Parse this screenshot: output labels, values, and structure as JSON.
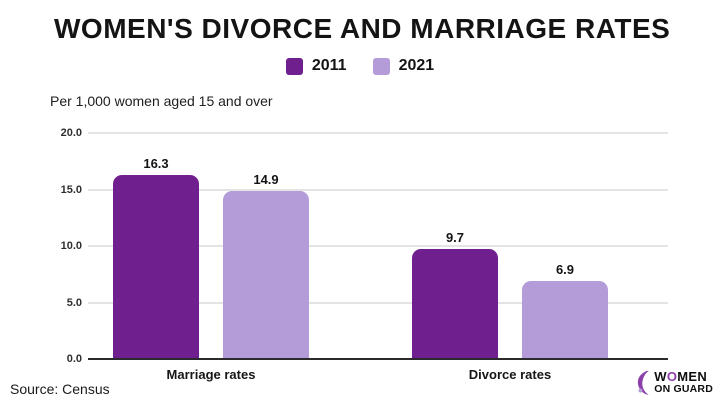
{
  "chart_data": {
    "type": "bar",
    "title": "WOMEN'S DIVORCE AND MARRIAGE RATES",
    "subtitle": "Per 1,000 women aged 15 and over",
    "categories": [
      "Marriage rates",
      "Divorce rates"
    ],
    "series": [
      {
        "name": "2011",
        "color": "#701f8e",
        "values": [
          16.3,
          9.7
        ]
      },
      {
        "name": "2021",
        "color": "#b49cd8",
        "values": [
          14.9,
          6.9
        ]
      }
    ],
    "value_labels": [
      [
        "16.3",
        "9.7"
      ],
      [
        "14.9",
        "6.9"
      ]
    ],
    "ylim": [
      0,
      20
    ],
    "yticks": [
      {
        "value": 20,
        "label": "20.0"
      },
      {
        "value": 15,
        "label": "15.0"
      },
      {
        "value": 10,
        "label": "10.0"
      },
      {
        "value": 5,
        "label": "5.0"
      },
      {
        "value": 0,
        "label": "0.0"
      }
    ],
    "grid": true,
    "legend_position": "top"
  },
  "footer": {
    "source": "Source: Census",
    "logo": {
      "line1_pre": "W",
      "line1_o": "O",
      "line1_post": "MEN",
      "line2": "ON GUARD"
    }
  }
}
